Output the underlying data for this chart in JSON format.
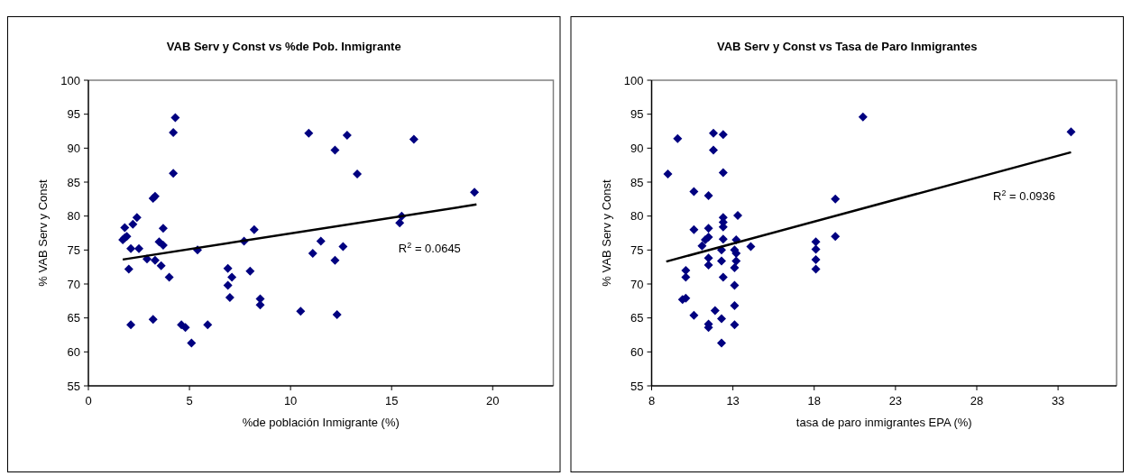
{
  "chart_data": [
    {
      "type": "scatter",
      "title": "VAB Serv y Const vs %de Pob. Inmigrante",
      "xlabel": "%de población Inmigrante (%)",
      "ylabel": "% VAB Serv y Const",
      "xlim": [
        0,
        23
      ],
      "xticks": [
        0,
        5,
        10,
        15,
        20
      ],
      "ylim": [
        55,
        100
      ],
      "yticks": [
        55,
        60,
        65,
        70,
        75,
        80,
        85,
        90,
        95,
        100
      ],
      "grid": false,
      "marker": "diamond",
      "series": [
        {
          "color": "#000080",
          "x": [
            1.8,
            1.9,
            1.7,
            1.8,
            2.2,
            2.1,
            2.5,
            2.0,
            2.1,
            2.4,
            3.2,
            3.3,
            2.9,
            3.3,
            3.5,
            3.7,
            3.6,
            3.7,
            3.2,
            4.0,
            4.3,
            4.2,
            4.2,
            4.6,
            4.8,
            5.1,
            5.4,
            5.9,
            6.9,
            6.9,
            7.0,
            7.1,
            7.7,
            8.0,
            8.2,
            8.5,
            8.5,
            10.5,
            10.9,
            11.1,
            11.5,
            12.2,
            12.2,
            12.3,
            12.6,
            12.8,
            13.3,
            15.4,
            15.5,
            16.1,
            19.1
          ],
          "values": [
            78.3,
            77,
            76.5,
            76.8,
            78.8,
            75.2,
            75.2,
            72.2,
            64,
            79.8,
            82.6,
            82.9,
            73.7,
            73.5,
            76.2,
            75.7,
            72.7,
            78.2,
            64.8,
            71,
            94.5,
            92.3,
            86.3,
            64,
            63.6,
            61.3,
            75,
            64,
            72.3,
            69.8,
            68,
            71,
            76.3,
            71.9,
            78,
            67.8,
            66.9,
            66,
            92.2,
            74.5,
            76.3,
            89.7,
            73.5,
            65.5,
            75.5,
            91.9,
            86.2,
            79,
            80,
            91.3,
            83.5
          ]
        },
        {
          "type": "line",
          "color": "#000000",
          "marker": "none",
          "x": [
            1.7,
            19.2
          ],
          "values": [
            73.6,
            81.7
          ]
        }
      ],
      "annotations": [
        "R$^{2}$ = 0.0645"
      ]
    },
    {
      "type": "scatter",
      "title": "VAB Serv y Const vs Tasa de Paro Inmigrantes",
      "xlabel": "tasa de paro inmigrantes  EPA (%)",
      "ylabel": "% VAB Serv y Const",
      "xlim": [
        8,
        36.6
      ],
      "xticks": [
        8,
        13,
        18,
        23,
        28,
        33
      ],
      "ylim": [
        55,
        100
      ],
      "yticks": [
        55,
        60,
        65,
        70,
        75,
        80,
        85,
        90,
        95,
        100
      ],
      "grid": false,
      "marker": "diamond",
      "series": [
        {
          "color": "#000080",
          "x": [
            9.0,
            9.6,
            10.6,
            10.6,
            10.1,
            10.1,
            9.9,
            10.1,
            10.6,
            11.5,
            11.5,
            11.5,
            11.3,
            11.1,
            11.5,
            11.5,
            11.5,
            11.5,
            11.8,
            11.8,
            11.9,
            12.4,
            12.4,
            12.4,
            12.4,
            12.4,
            12.4,
            12.3,
            12.3,
            12.4,
            12.3,
            12.3,
            13.3,
            13.2,
            13.1,
            13.2,
            13.2,
            13.1,
            13.1,
            13.1,
            13.1,
            14.1,
            18.1,
            18.1,
            18.1,
            18.1,
            19.3,
            19.3,
            21.0,
            33.8
          ],
          "values": [
            86.2,
            91.4,
            83.6,
            78.0,
            72.0,
            71.0,
            67.7,
            67.9,
            65.4,
            83.0,
            78.2,
            76.9,
            76.5,
            75.6,
            73.8,
            72.8,
            64.1,
            63.6,
            92.2,
            89.7,
            66.1,
            92.0,
            86.4,
            79.8,
            79.1,
            78.4,
            76.6,
            75.0,
            73.4,
            71.0,
            64.9,
            61.3,
            80.1,
            76.5,
            75.0,
            74.5,
            73.4,
            72.4,
            69.8,
            66.8,
            64.0,
            75.5,
            76.2,
            75.1,
            73.6,
            72.2,
            82.5,
            77.0,
            94.6,
            92.4
          ]
        },
        {
          "type": "line",
          "color": "#000000",
          "marker": "none",
          "x": [
            8.9,
            33.8
          ],
          "values": [
            73.3,
            89.4
          ]
        }
      ],
      "annotations": [
        "R$^{2}$ = 0.0936"
      ]
    }
  ]
}
